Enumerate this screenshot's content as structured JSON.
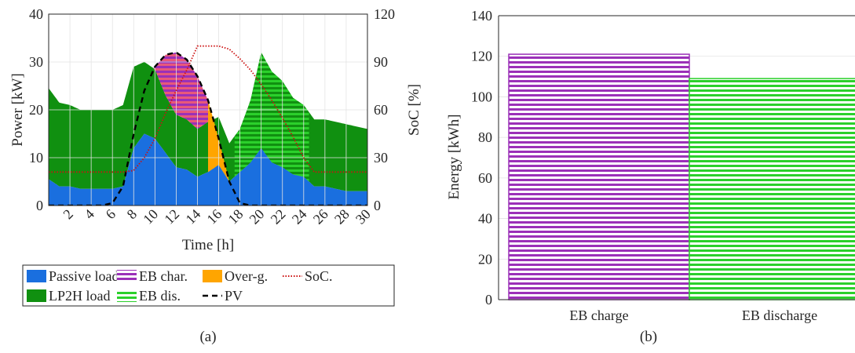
{
  "colors": {
    "passive": "#1a6fdf",
    "lp2h": "#109010",
    "eb_char": "#9b30b8",
    "over_g": "#ffa500",
    "eb_dis": "#2bd02b",
    "soc": "#cc1111",
    "pv": "#000000",
    "overlap": "#e8587a"
  },
  "panel_a": {
    "caption": "(a)",
    "chart_data": {
      "type": "area",
      "xlabel": "Time [h]",
      "ylabel_left": "Power [kW]",
      "ylabel_right": "SoC [%]",
      "xlim": [
        0,
        30
      ],
      "ylim_left": [
        0,
        40
      ],
      "ylim_right": [
        0,
        120
      ],
      "xticks": [
        "2",
        "4",
        "6",
        "8",
        "10",
        "12",
        "14",
        "16",
        "18",
        "20",
        "22",
        "24",
        "26",
        "28",
        "30"
      ],
      "yticks_left": [
        "0",
        "10",
        "20",
        "30",
        "40"
      ],
      "yticks_right": [
        "0",
        "30",
        "60",
        "90",
        "120"
      ],
      "grid": true,
      "x": [
        0,
        1,
        2,
        3,
        4,
        5,
        6,
        7,
        8,
        9,
        10,
        11,
        12,
        13,
        14,
        15,
        16,
        17,
        18,
        19,
        20,
        21,
        22,
        23,
        24,
        25,
        26,
        27,
        28,
        29,
        30
      ],
      "series": [
        {
          "name": "Passive load",
          "values": [
            5.5,
            4,
            4,
            3.5,
            3.5,
            3.5,
            3.5,
            4,
            12,
            15,
            14,
            11,
            8,
            7.5,
            6,
            7,
            8.5,
            5,
            7,
            9,
            12,
            9,
            8,
            6.5,
            6,
            4,
            4,
            3.5,
            3,
            3,
            3
          ]
        },
        {
          "name": "LP2H load",
          "values": [
            19,
            17.5,
            17,
            16.5,
            16.5,
            16.5,
            16.5,
            17,
            17,
            15,
            14.5,
            12,
            11,
            10.5,
            10,
            10.5,
            10,
            8,
            9,
            13,
            20,
            19,
            18,
            16,
            15,
            14,
            14,
            14,
            14,
            13.5,
            13
          ]
        },
        {
          "name": "PV",
          "values": [
            0,
            0,
            0,
            0,
            0,
            0,
            0.5,
            4,
            15,
            24,
            29,
            31.5,
            32,
            30.5,
            27,
            22,
            14,
            5,
            0.5,
            0,
            0,
            0,
            0,
            0,
            0,
            0,
            0,
            0,
            0,
            0,
            0
          ]
        },
        {
          "name": "SoC.",
          "values": [
            21,
            21,
            21,
            21,
            21,
            21,
            21,
            21,
            22,
            30,
            42,
            58,
            72,
            85,
            100,
            100,
            100,
            98,
            92,
            85,
            76,
            66,
            55,
            43,
            30,
            21,
            21,
            21,
            21,
            21,
            21
          ]
        }
      ],
      "eb_char_range": [
        8,
        15
      ],
      "over_g_range": [
        15,
        17.5
      ],
      "eb_dis_range": [
        17.5,
        24.5
      ],
      "legend": [
        {
          "label": "Passive load",
          "kind": "solid",
          "color": "passive"
        },
        {
          "label": "EB char.",
          "kind": "stripe",
          "color": "eb_char"
        },
        {
          "label": "Over-g.",
          "kind": "solid",
          "color": "over_g"
        },
        {
          "label": "SoC.",
          "kind": "dotted",
          "color": "soc"
        },
        {
          "label": "LP2H load",
          "kind": "solid",
          "color": "lp2h"
        },
        {
          "label": "EB dis.",
          "kind": "stripe",
          "color": "eb_dis"
        },
        {
          "label": "PV",
          "kind": "dashed",
          "color": "pv"
        }
      ]
    }
  },
  "panel_b": {
    "caption": "(b)",
    "chart_data": {
      "type": "bar",
      "categories": [
        "EB charge",
        "EB discharge"
      ],
      "values": [
        121,
        109
      ],
      "ylabel": "Energy [kWh]",
      "xlabel": "",
      "ylim": [
        0,
        140
      ],
      "yticks": [
        "0",
        "20",
        "40",
        "60",
        "80",
        "100",
        "120",
        "140"
      ],
      "grid": true,
      "bar_colors": [
        "eb_char",
        "eb_dis"
      ]
    }
  }
}
